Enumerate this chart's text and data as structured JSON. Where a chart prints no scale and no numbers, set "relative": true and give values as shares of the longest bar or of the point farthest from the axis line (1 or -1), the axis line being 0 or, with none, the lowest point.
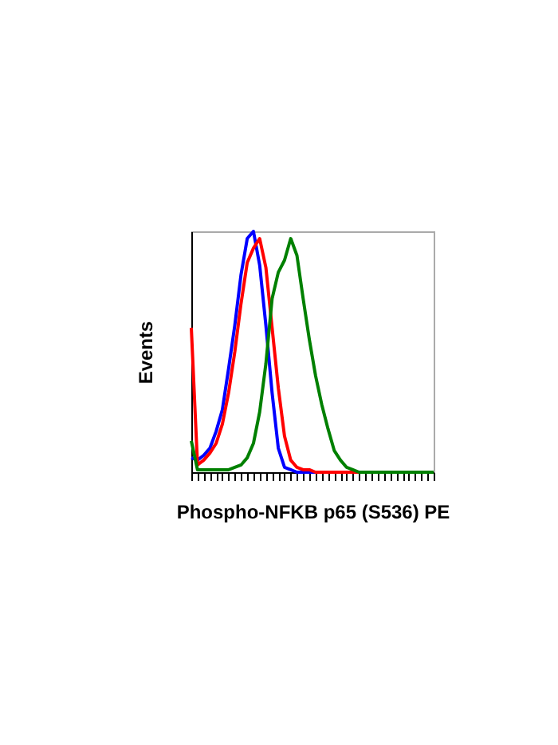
{
  "chart_data": {
    "type": "line",
    "relative": true,
    "xlabel": "Phospho-NFKB p65 (S536) PE",
    "ylabel": "Events",
    "tick_labels": false,
    "categories": [
      null,
      null,
      null,
      null,
      null,
      null,
      null,
      null,
      null,
      null,
      null,
      null,
      null,
      null,
      null,
      null,
      null,
      null,
      null,
      null,
      null,
      null,
      null,
      null,
      null,
      null,
      null,
      null,
      null,
      null,
      null,
      null,
      null,
      null,
      null,
      null,
      null,
      null,
      null,
      null
    ],
    "series": [
      {
        "color": "#0000ff",
        "values": [
          0.06,
          0.05,
          0.07,
          0.1,
          0.17,
          0.26,
          0.43,
          0.61,
          0.82,
          0.97,
          1,
          0.86,
          0.61,
          0.33,
          0.1,
          0.02,
          0.01,
          0,
          0,
          0,
          0,
          0,
          0,
          null,
          null,
          null,
          null,
          null,
          null,
          null,
          null,
          null,
          null,
          null,
          null,
          null,
          null,
          null,
          null,
          null
        ]
      },
      {
        "color": "#ff0000",
        "values": [
          0.6,
          0.03,
          0.05,
          0.08,
          0.12,
          0.2,
          0.33,
          0.5,
          0.7,
          0.87,
          0.93,
          0.97,
          0.85,
          0.6,
          0.35,
          0.15,
          0.05,
          0.02,
          0.01,
          0.01,
          0,
          0,
          0,
          0,
          0,
          0,
          0,
          0,
          0,
          null,
          null,
          null,
          null,
          null,
          null,
          null,
          null,
          null,
          null,
          null
        ]
      },
      {
        "color": "#008000",
        "values": [
          0.13,
          0.01,
          0.01,
          0.01,
          0.01,
          0.01,
          0.01,
          0.02,
          0.03,
          0.06,
          0.12,
          0.25,
          0.45,
          0.72,
          0.83,
          0.88,
          0.97,
          0.9,
          0.72,
          0.55,
          0.4,
          0.28,
          0.18,
          0.09,
          0.05,
          0.02,
          0.01,
          0,
          0,
          0,
          0,
          0,
          0,
          0,
          0,
          0,
          0,
          0,
          0,
          0
        ]
      }
    ]
  }
}
